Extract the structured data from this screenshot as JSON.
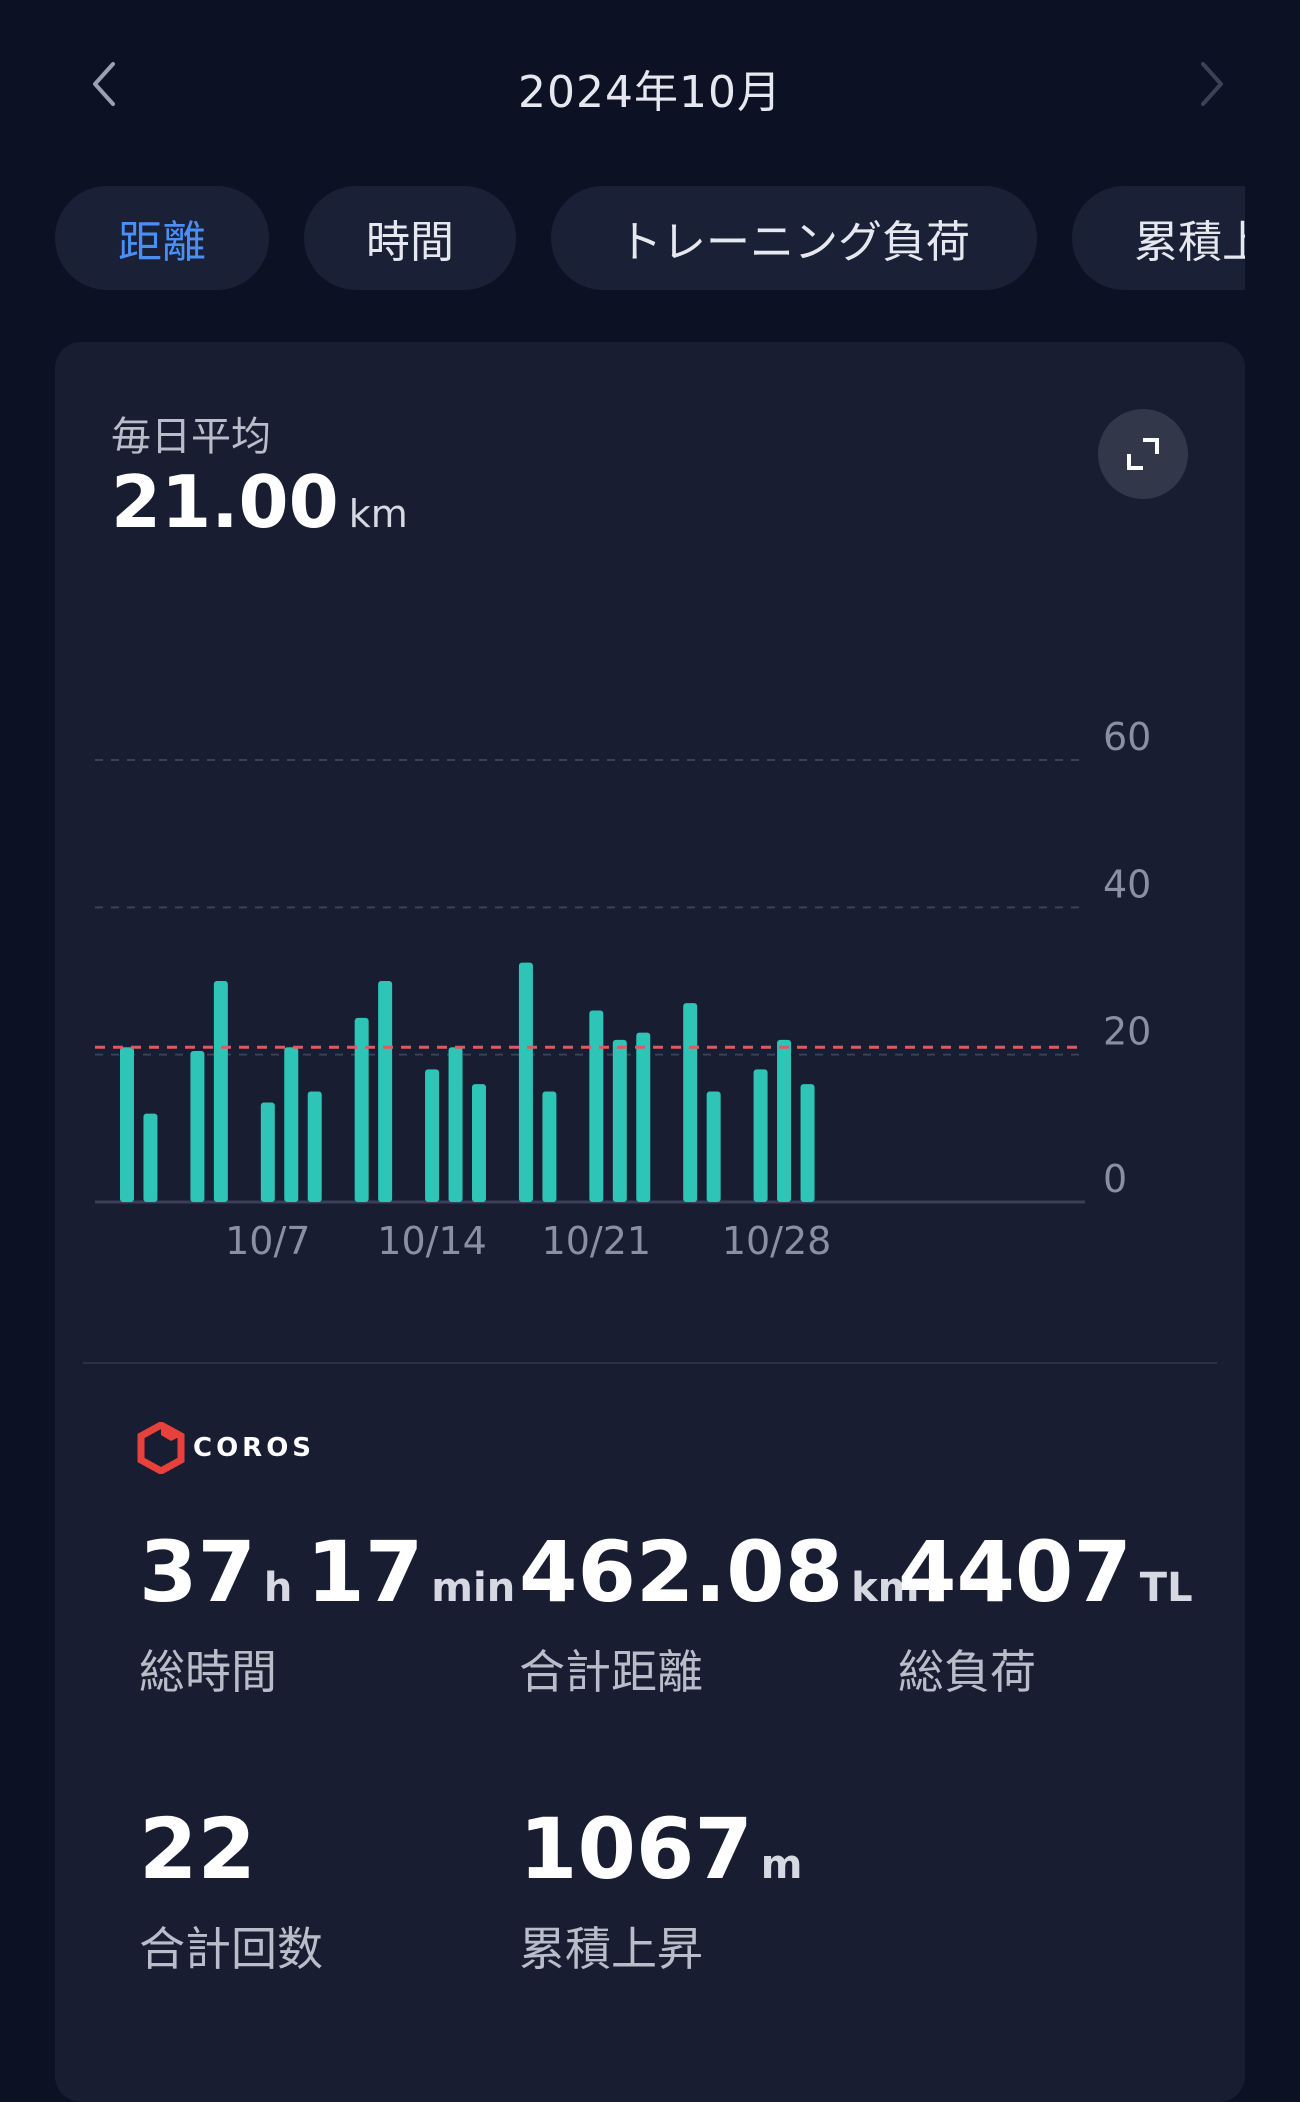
{
  "header": {
    "month": "2024年10月",
    "prev_icon": "chevron-left-icon",
    "next_icon": "chevron-right-icon"
  },
  "tabs": [
    {
      "label": "距離",
      "active": true
    },
    {
      "label": "時間",
      "active": false
    },
    {
      "label": "トレーニング負荷",
      "active": false
    },
    {
      "label": "累積上",
      "active": false
    }
  ],
  "summary": {
    "avg_label": "毎日平均",
    "avg_value": "21.00",
    "avg_unit": "km",
    "expand_icon": "expand-icon"
  },
  "chart_data": {
    "type": "bar",
    "x_ticks": [
      "10/7",
      "10/14",
      "10/21",
      "10/28"
    ],
    "y_ticks": [
      "60",
      "40",
      "20",
      "0"
    ],
    "ylim": [
      0,
      60
    ],
    "grid": true,
    "average_line": 21,
    "values": [
      21,
      12,
      null,
      20.5,
      30,
      null,
      13.5,
      21,
      15,
      null,
      25,
      30,
      null,
      18,
      21,
      16,
      null,
      32.5,
      15,
      null,
      26,
      22,
      23,
      null,
      27,
      15,
      null,
      18,
      22,
      16,
      null
    ],
    "bar_color": "#2ec4b6",
    "avg_color": "#e05a5a"
  },
  "brand": {
    "name": "COROS",
    "icon": "coros-logo-icon"
  },
  "stats": [
    {
      "parts": [
        {
          "v": "37",
          "u": "h"
        },
        {
          "v": "17",
          "u": "min"
        }
      ],
      "label": "総時間"
    },
    {
      "parts": [
        {
          "v": "462.08",
          "u": "km"
        }
      ],
      "label": "合計距離"
    },
    {
      "parts": [
        {
          "v": "4407",
          "u": "TL"
        }
      ],
      "label": "総負荷"
    },
    {
      "parts": [
        {
          "v": "22",
          "u": ""
        }
      ],
      "label": "合計回数"
    },
    {
      "parts": [
        {
          "v": "1067",
          "u": "m"
        }
      ],
      "label": "累積上昇"
    }
  ]
}
